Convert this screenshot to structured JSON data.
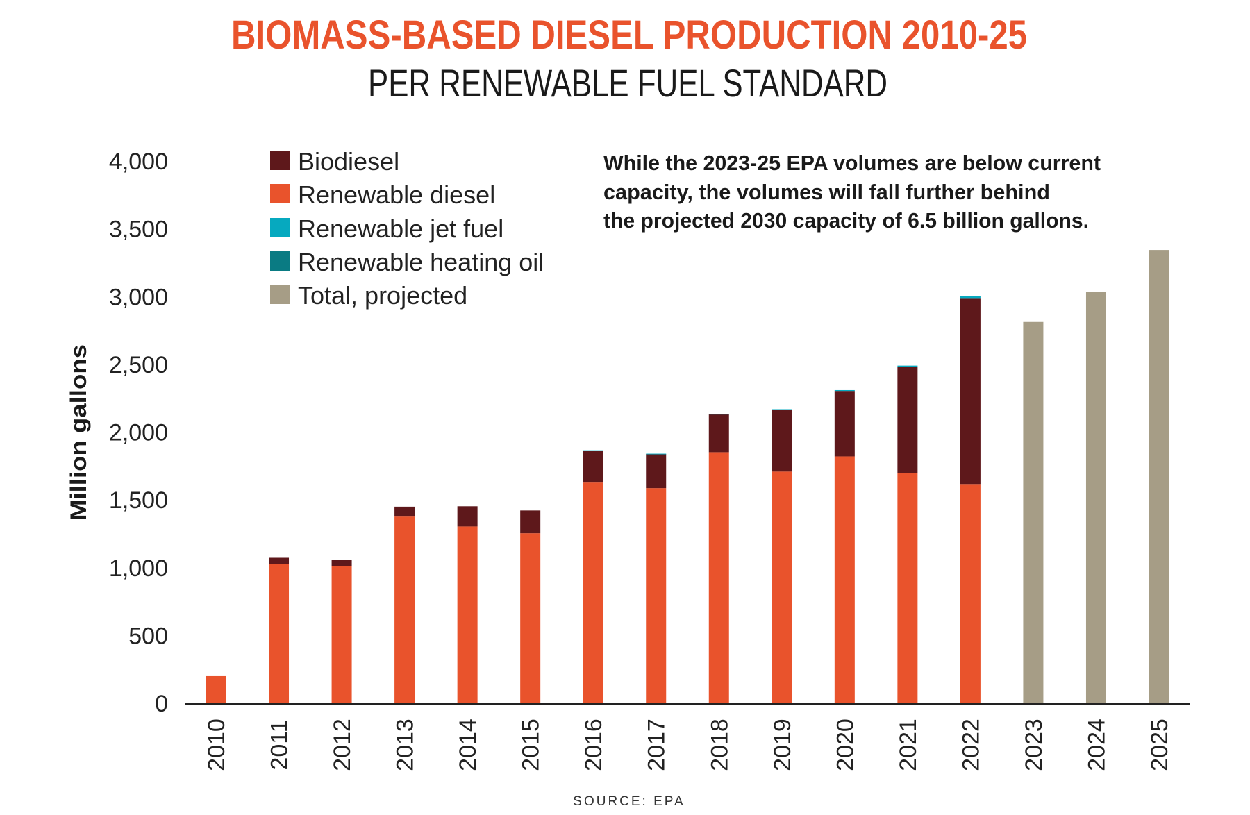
{
  "chart_data": {
    "type": "bar",
    "stacked": true,
    "title": "BIOMASS-BASED DIESEL PRODUCTION 2010-25",
    "subtitle": "PER RENEWABLE FUEL STANDARD",
    "ylabel": "Million gallons",
    "xlabel": "",
    "ylim": [
      0,
      4000
    ],
    "yticks": [
      "0",
      "500",
      "1,000",
      "1,500",
      "2,000",
      "2,500",
      "3,000",
      "3,500",
      "4,000"
    ],
    "ytick_values": [
      0,
      500,
      1000,
      1500,
      2000,
      2500,
      3000,
      3500,
      4000
    ],
    "grid": false,
    "legend_position": "top-left",
    "categories": [
      "2010",
      "2011",
      "2012",
      "2013",
      "2014",
      "2015",
      "2016",
      "2017",
      "2018",
      "2019",
      "2020",
      "2021",
      "2022",
      "2023",
      "2024",
      "2025"
    ],
    "series": [
      {
        "name": "Renewable diesel",
        "color": "#e9532c",
        "values": [
          200,
          1028,
          1014,
          1377,
          1304,
          1254,
          1628,
          1587,
          1852,
          1709,
          1821,
          1698,
          1617,
          0,
          0,
          0
        ]
      },
      {
        "name": "Biodiesel",
        "color": "#5e181b",
        "values": [
          0,
          45,
          42,
          73,
          149,
          168,
          235,
          251,
          279,
          456,
          483,
          785,
          1372,
          0,
          0,
          0
        ]
      },
      {
        "name": "Renewable jet fuel",
        "color": "#06a9bf",
        "values": [
          0,
          0,
          0,
          0,
          0,
          0,
          3,
          3,
          4,
          4,
          6,
          8,
          14,
          0,
          0,
          0
        ]
      },
      {
        "name": "Renewable heating oil",
        "color": "#0a7b83",
        "values": [
          0,
          0,
          0,
          0,
          0,
          0,
          0,
          0,
          0,
          0,
          0,
          0,
          0,
          0,
          0,
          0
        ]
      },
      {
        "name": "Total, projected",
        "color": "#a69d86",
        "values": [
          0,
          0,
          0,
          0,
          0,
          0,
          0,
          0,
          0,
          0,
          0,
          0,
          0,
          2813,
          3034,
          3344
        ]
      }
    ],
    "legend_order": [
      "Biodiesel",
      "Renewable diesel",
      "Renewable jet fuel",
      "Renewable heating oil",
      "Total, projected"
    ],
    "annotation": [
      "While the 2023-25 EPA volumes are below current",
      "capacity, the volumes will fall further behind",
      "the projected 2030 capacity of 6.5 billion gallons."
    ],
    "source": "SOURCE: EPA"
  }
}
